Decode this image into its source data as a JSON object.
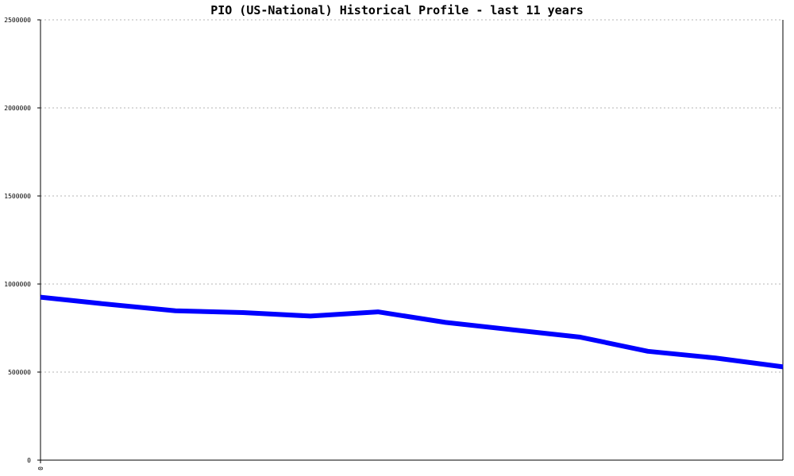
{
  "chart_data": {
    "type": "line",
    "title": "PIO (US-National) Historical Profile - last 11 years",
    "xlabel": "",
    "ylabel": "",
    "ylim": [
      0,
      2500000
    ],
    "y_ticks": [
      0,
      500000,
      1000000,
      1500000,
      2000000,
      2500000
    ],
    "y_tick_labels": [
      "0",
      "500000",
      "1000000",
      "1500000",
      "2000000",
      "2500000"
    ],
    "x_range": [
      0,
      11
    ],
    "x_tick_labels": [
      "0"
    ],
    "grid": true,
    "series": [
      {
        "color": "#0000ff",
        "x": [
          0,
          1,
          2,
          3,
          4,
          5,
          6,
          7,
          8,
          9,
          10,
          11
        ],
        "values": [
          925000,
          885000,
          848000,
          838000,
          818000,
          842000,
          782000,
          740000,
          698000,
          618000,
          580000,
          530000
        ]
      }
    ]
  }
}
